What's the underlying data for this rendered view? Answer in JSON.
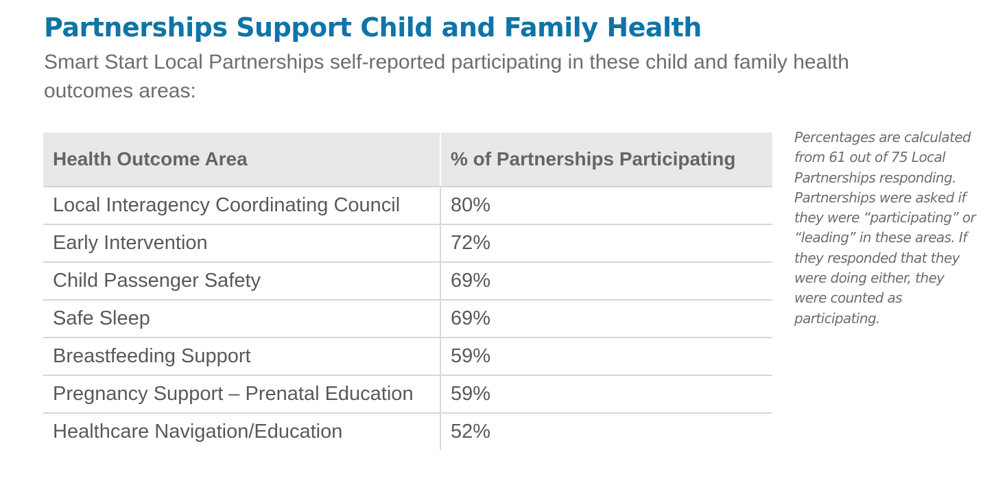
{
  "header": {
    "title": "Partnerships Support Child and Family Health",
    "subtitle": "Smart Start Local Partnerships self-reported participating in these child and family health outcomes areas:"
  },
  "table": {
    "headers": [
      "Health Outcome Area",
      "% of Partnerships Participating"
    ],
    "rows": [
      {
        "area": "Local Interagency Coordinating Council",
        "percent": "80%"
      },
      {
        "area": "Early Intervention",
        "percent": "72%"
      },
      {
        "area": "Child Passenger Safety",
        "percent": "69%"
      },
      {
        "area": "Safe Sleep",
        "percent": "69%"
      },
      {
        "area": "Breastfeeding Support",
        "percent": "59%"
      },
      {
        "area": "Pregnancy Support – Prenatal Education",
        "percent": "59%"
      },
      {
        "area": "Healthcare Navigation/Education",
        "percent": "52%"
      }
    ]
  },
  "note": {
    "text": "Percentages are calculated from 61 out of 75 Local Partnerships responding. Partnerships were asked if they were “participating” or “leading” in these areas. If they responded that they were doing either, they were counted as participating."
  },
  "colors": {
    "title": "#0f74a7",
    "body_text": "#58595b",
    "header_background": "#e7e8e7",
    "rule": "#d6d7d6"
  }
}
